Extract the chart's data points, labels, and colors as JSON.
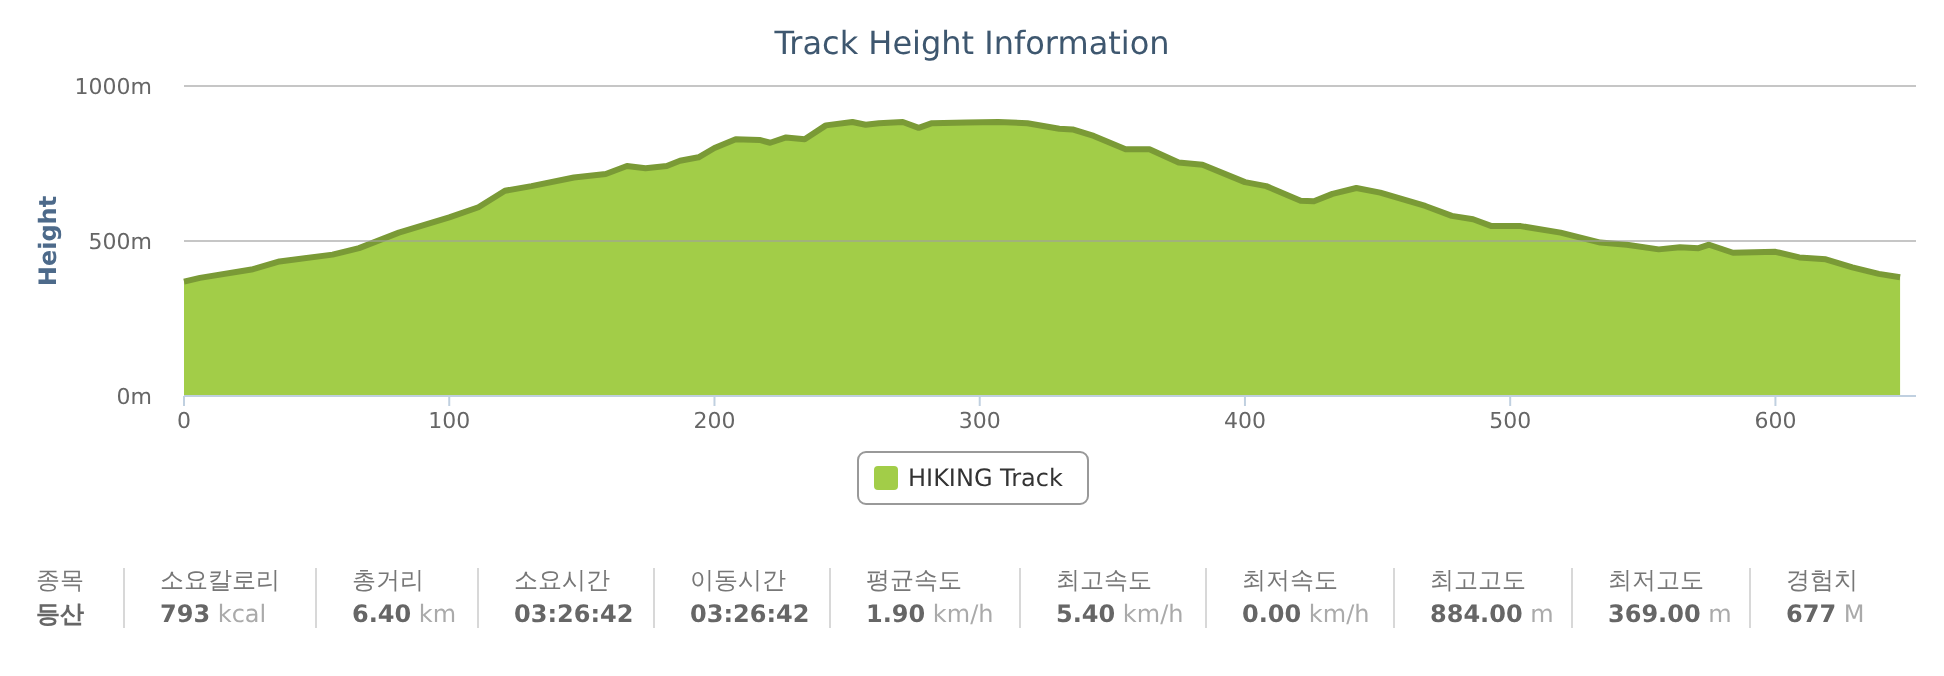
{
  "chart_data": {
    "type": "area",
    "title": "Track Height Information",
    "ylabel": "Height",
    "x": [
      0,
      6,
      26,
      36,
      56,
      66,
      81,
      100,
      111,
      121,
      131,
      147,
      159,
      167,
      174,
      182,
      187,
      194,
      200,
      208,
      217,
      221,
      227,
      234,
      242,
      252,
      257,
      262,
      271,
      277,
      282,
      295,
      307,
      318,
      330,
      335,
      343,
      355,
      364,
      375,
      384,
      400,
      408,
      421,
      426,
      433,
      442,
      451,
      468,
      478,
      486,
      493,
      504,
      519,
      534,
      544,
      556,
      564,
      571,
      575,
      584,
      600,
      609,
      619,
      629,
      639,
      647
    ],
    "series": [
      {
        "name": "HIKING Track",
        "color": "#a2cd48",
        "values": [
          369,
          381,
          409,
          434,
          456,
          477,
          527,
          576,
          609,
          662,
          677,
          705,
          716,
          742,
          735,
          742,
          759,
          770,
          800,
          828,
          826,
          817,
          834,
          828,
          873,
          884,
          875,
          880,
          884,
          865,
          880,
          882,
          884,
          880,
          862,
          860,
          839,
          796,
          796,
          753,
          746,
          690,
          677,
          630,
          628,
          652,
          671,
          656,
          613,
          581,
          570,
          548,
          548,
          527,
          495,
          488,
          473,
          480,
          477,
          488,
          462,
          465,
          447,
          441,
          415,
          394,
          383
        ]
      }
    ],
    "xlim": [
      0,
      653
    ],
    "xticks": [
      0,
      100,
      200,
      300,
      400,
      500,
      600
    ],
    "ylim": [
      0,
      1000
    ],
    "yticks": [
      {
        "value": 0,
        "label": "0m"
      },
      {
        "value": 500,
        "label": "500m"
      },
      {
        "value": 1000,
        "label": "1000m"
      }
    ],
    "grid": "y",
    "legend": "bottom",
    "marker": "none",
    "annotations": [
      "종목",
      "등산",
      "소요칼로리",
      "793 kcal",
      "총거리",
      "6.40 km",
      "소요시간",
      "03:26:42",
      "이동시간",
      "03:26:42",
      "평균속도",
      "1.90 km/h",
      "최고속도",
      "5.40 km/h",
      "최저속도",
      "0.00 km/h",
      "최고고도",
      "884.00 m",
      "최저고도",
      "369.00 m",
      "경험치",
      "677 M"
    ]
  }
}
